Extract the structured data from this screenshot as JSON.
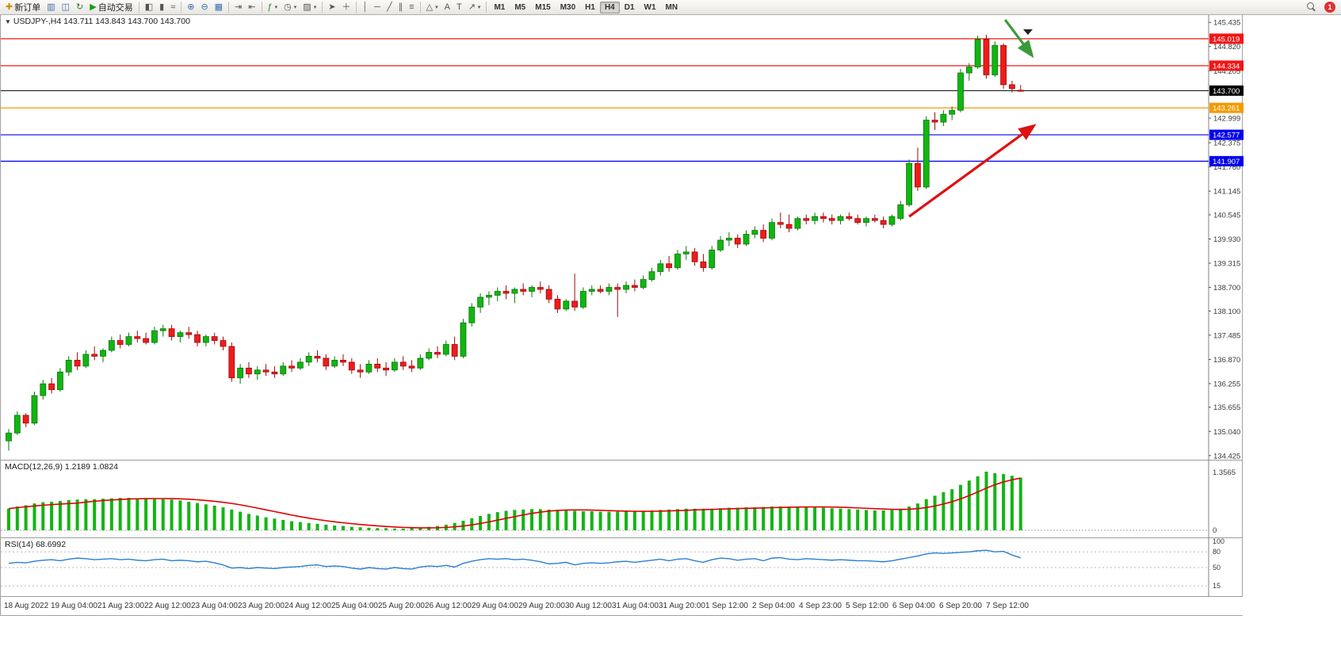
{
  "toolbar": {
    "groups": [
      {
        "items": [
          {
            "name": "new-order",
            "glyph": "✚",
            "glyph_color": "#c79100",
            "label": "新订单"
          },
          {
            "name": "chart-windows",
            "glyph": "▥",
            "glyph_color": "#3b6ea5"
          },
          {
            "name": "profiles",
            "glyph": "◫",
            "glyph_color": "#3b6ea5"
          },
          {
            "name": "refresh",
            "glyph": "↻",
            "glyph_color": "#2e7d32"
          },
          {
            "name": "auto-trading",
            "glyph": "▶",
            "glyph_color": "#1a9c1a",
            "label": "自动交易"
          }
        ]
      },
      {
        "items": [
          {
            "name": "bar-chart-mode",
            "glyph": "◧",
            "glyph_color": "#555"
          },
          {
            "name": "candlestick-mode",
            "glyph": "▮",
            "glyph_color": "#555"
          },
          {
            "name": "line-chart-mode",
            "glyph": "≈",
            "glyph_color": "#555"
          }
        ]
      },
      {
        "items": [
          {
            "name": "zoom-in",
            "glyph": "⊕",
            "glyph_color": "#3b6ea5"
          },
          {
            "name": "zoom-out",
            "glyph": "⊖",
            "glyph_color": "#3b6ea5"
          },
          {
            "name": "tile-windows",
            "glyph": "▦",
            "glyph_color": "#3b6ea5"
          }
        ]
      },
      {
        "items": [
          {
            "name": "auto-scroll",
            "glyph": "⇥",
            "glyph_color": "#555"
          },
          {
            "name": "chart-shift",
            "glyph": "⇤",
            "glyph_color": "#555"
          }
        ]
      },
      {
        "items": [
          {
            "name": "indicators",
            "glyph": "ƒ",
            "glyph_color": "#2e7d32",
            "caret": true
          },
          {
            "name": "periods",
            "glyph": "◷",
            "glyph_color": "#555",
            "caret": true
          },
          {
            "name": "templates",
            "glyph": "▨",
            "glyph_color": "#555",
            "caret": true
          }
        ]
      },
      {
        "items": [
          {
            "name": "cursor",
            "glyph": "➤",
            "glyph_color": "#555"
          },
          {
            "name": "crosshair",
            "glyph": "＋",
            "glyph_color": "#555"
          }
        ]
      },
      {
        "items": [
          {
            "name": "vertical-line",
            "glyph": "│",
            "glyph_color": "#555"
          },
          {
            "name": "horizontal-line",
            "glyph": "─",
            "glyph_color": "#555"
          },
          {
            "name": "trendline",
            "glyph": "╱",
            "glyph_color": "#555"
          },
          {
            "name": "equidistant-channel",
            "glyph": "∥",
            "glyph_color": "#555"
          },
          {
            "name": "fibonacci",
            "glyph": "≡",
            "glyph_color": "#555"
          }
        ]
      },
      {
        "items": [
          {
            "name": "shapes",
            "glyph": "△",
            "glyph_color": "#555",
            "caret": true
          },
          {
            "name": "text",
            "glyph": "A",
            "glyph_color": "#555"
          },
          {
            "name": "text-label",
            "glyph": "T",
            "glyph_color": "#555"
          },
          {
            "name": "arrows-tool",
            "glyph": "↗",
            "glyph_color": "#555",
            "caret": true
          }
        ]
      }
    ],
    "timeframes": [
      "M1",
      "M5",
      "M15",
      "M30",
      "H1",
      "H4",
      "D1",
      "W1",
      "MN"
    ],
    "active_timeframe": "H4",
    "collapse_arrow": "▼",
    "caret_glyph": "▾",
    "notification_count": "1"
  },
  "chart": {
    "title": "USDJPY-,H4  143.711 143.843 143.700 143.700",
    "symbol": "USDJPY-",
    "period": "H4"
  },
  "indicators": {
    "macd": {
      "label": "MACD(12,26,9) 1.2189 1.0824",
      "axis_max_label": "1.3565",
      "axis_zero_label": "0"
    },
    "rsi": {
      "label": "RSI(14) 68.6992",
      "axis_labels": [
        "100",
        "80",
        "50",
        "15"
      ]
    }
  },
  "chart_data": {
    "type": "candlestick",
    "symbol": "USDJPY-",
    "timeframe": "H4",
    "price_range": {
      "min": 134.3,
      "max": 145.62
    },
    "price_axis_ticks": [
      145.435,
      144.82,
      144.205,
      142.999,
      142.375,
      141.76,
      141.145,
      140.545,
      139.93,
      139.315,
      138.7,
      138.1,
      137.485,
      136.87,
      136.255,
      135.655,
      135.04,
      134.425
    ],
    "price_lines": [
      {
        "value": 145.019,
        "label": "145.019",
        "color": "#f21616",
        "kind": "resistance"
      },
      {
        "value": 144.334,
        "label": "144.334",
        "color": "#f21616",
        "kind": "resistance"
      },
      {
        "value": 143.7,
        "label": "143.700",
        "color": "#000000",
        "kind": "current-price"
      },
      {
        "value": 143.261,
        "label": "143.261",
        "color": "#f59a00",
        "kind": "level"
      },
      {
        "value": 142.577,
        "label": "142.577",
        "color": "#0000f0",
        "kind": "support"
      },
      {
        "value": 141.907,
        "label": "141.907",
        "color": "#0000f0",
        "kind": "support"
      }
    ],
    "time_labels": [
      "18 Aug 2022",
      "19 Aug 04:00",
      "21 Aug 23:00",
      "22 Aug 12:00",
      "23 Aug 04:00",
      "23 Aug 20:00",
      "24 Aug 12:00",
      "25 Aug 04:00",
      "25 Aug 20:00",
      "26 Aug 12:00",
      "29 Aug 04:00",
      "29 Aug 20:00",
      "30 Aug 12:00",
      "31 Aug 04:00",
      "31 Aug 20:00",
      "1 Sep 12:00",
      "2 Sep 04:00",
      "4 Sep 23:00",
      "5 Sep 12:00",
      "6 Sep 04:00",
      "6 Sep 20:00",
      "7 Sep 12:00"
    ],
    "candles": [
      [
        134.8,
        135.1,
        134.55,
        135.0
      ],
      [
        135.0,
        135.55,
        134.95,
        135.45
      ],
      [
        135.45,
        135.5,
        135.15,
        135.25
      ],
      [
        135.25,
        136.05,
        135.2,
        135.95
      ],
      [
        135.95,
        136.35,
        135.85,
        136.25
      ],
      [
        136.25,
        136.4,
        136.0,
        136.1
      ],
      [
        136.1,
        136.65,
        136.05,
        136.55
      ],
      [
        136.55,
        136.95,
        136.45,
        136.85
      ],
      [
        136.85,
        137.05,
        136.6,
        136.7
      ],
      [
        136.7,
        137.1,
        136.65,
        137.0
      ],
      [
        137.0,
        137.2,
        136.85,
        136.95
      ],
      [
        136.95,
        137.15,
        136.8,
        137.1
      ],
      [
        137.1,
        137.45,
        137.05,
        137.35
      ],
      [
        137.35,
        137.5,
        137.15,
        137.25
      ],
      [
        137.25,
        137.55,
        137.2,
        137.45
      ],
      [
        137.45,
        137.6,
        137.3,
        137.4
      ],
      [
        137.4,
        137.55,
        137.25,
        137.3
      ],
      [
        137.3,
        137.7,
        137.25,
        137.6
      ],
      [
        137.6,
        137.75,
        137.45,
        137.65
      ],
      [
        137.65,
        137.75,
        137.35,
        137.45
      ],
      [
        137.45,
        137.6,
        137.3,
        137.55
      ],
      [
        137.55,
        137.7,
        137.4,
        137.5
      ],
      [
        137.5,
        137.6,
        137.2,
        137.3
      ],
      [
        137.3,
        137.5,
        137.2,
        137.45
      ],
      [
        137.45,
        137.55,
        137.25,
        137.35
      ],
      [
        137.35,
        137.45,
        137.1,
        137.2
      ],
      [
        137.2,
        137.3,
        136.3,
        136.4
      ],
      [
        136.4,
        136.75,
        136.25,
        136.65
      ],
      [
        136.65,
        136.8,
        136.4,
        136.5
      ],
      [
        136.5,
        136.7,
        136.35,
        136.6
      ],
      [
        136.6,
        136.75,
        136.45,
        136.55
      ],
      [
        136.55,
        136.7,
        136.4,
        136.5
      ],
      [
        136.5,
        136.8,
        136.45,
        136.7
      ],
      [
        136.7,
        136.85,
        136.55,
        136.65
      ],
      [
        136.65,
        136.9,
        136.6,
        136.8
      ],
      [
        136.8,
        137.05,
        136.7,
        136.95
      ],
      [
        136.95,
        137.1,
        136.8,
        136.9
      ],
      [
        136.9,
        137.0,
        136.6,
        136.7
      ],
      [
        136.7,
        136.95,
        136.65,
        136.85
      ],
      [
        136.85,
        137.0,
        136.7,
        136.8
      ],
      [
        136.8,
        136.9,
        136.5,
        136.6
      ],
      [
        136.6,
        136.75,
        136.4,
        136.55
      ],
      [
        136.55,
        136.85,
        136.5,
        136.75
      ],
      [
        136.75,
        136.9,
        136.55,
        136.65
      ],
      [
        136.65,
        136.8,
        136.45,
        136.6
      ],
      [
        136.6,
        136.9,
        136.55,
        136.8
      ],
      [
        136.8,
        136.95,
        136.6,
        136.7
      ],
      [
        136.7,
        136.85,
        136.55,
        136.65
      ],
      [
        136.65,
        137.0,
        136.6,
        136.9
      ],
      [
        136.9,
        137.15,
        136.85,
        137.05
      ],
      [
        137.05,
        137.2,
        136.9,
        137.0
      ],
      [
        137.0,
        137.35,
        136.95,
        137.25
      ],
      [
        137.25,
        137.45,
        136.85,
        136.95
      ],
      [
        136.95,
        137.9,
        136.9,
        137.8
      ],
      [
        137.8,
        138.3,
        137.7,
        138.2
      ],
      [
        138.2,
        138.55,
        138.05,
        138.45
      ],
      [
        138.45,
        138.6,
        138.25,
        138.5
      ],
      [
        138.5,
        138.7,
        138.35,
        138.6
      ],
      [
        138.6,
        138.75,
        138.4,
        138.55
      ],
      [
        138.55,
        138.7,
        138.3,
        138.65
      ],
      [
        138.65,
        138.8,
        138.5,
        138.6
      ],
      [
        138.6,
        138.75,
        138.45,
        138.7
      ],
      [
        138.7,
        138.85,
        138.55,
        138.65
      ],
      [
        138.65,
        138.75,
        138.3,
        138.4
      ],
      [
        138.4,
        138.5,
        138.05,
        138.15
      ],
      [
        138.15,
        138.4,
        138.1,
        138.35
      ],
      [
        138.35,
        139.05,
        138.1,
        138.2
      ],
      [
        138.2,
        138.7,
        138.15,
        138.6
      ],
      [
        138.6,
        138.75,
        138.5,
        138.65
      ],
      [
        138.65,
        138.75,
        138.55,
        138.6
      ],
      [
        138.6,
        138.8,
        138.5,
        138.7
      ],
      [
        138.7,
        138.8,
        137.95,
        138.65
      ],
      [
        138.65,
        138.85,
        138.55,
        138.75
      ],
      [
        138.75,
        138.9,
        138.6,
        138.7
      ],
      [
        138.7,
        139.0,
        138.65,
        138.9
      ],
      [
        138.9,
        139.2,
        138.85,
        139.1
      ],
      [
        139.1,
        139.4,
        139.0,
        139.3
      ],
      [
        139.3,
        139.5,
        139.1,
        139.2
      ],
      [
        139.2,
        139.65,
        139.15,
        139.55
      ],
      [
        139.55,
        139.75,
        139.4,
        139.6
      ],
      [
        139.6,
        139.7,
        139.25,
        139.35
      ],
      [
        139.35,
        139.55,
        139.1,
        139.2
      ],
      [
        139.2,
        139.75,
        139.15,
        139.65
      ],
      [
        139.65,
        140.0,
        139.6,
        139.9
      ],
      [
        139.9,
        140.1,
        139.75,
        139.95
      ],
      [
        139.95,
        140.05,
        139.7,
        139.8
      ],
      [
        139.8,
        140.15,
        139.75,
        140.05
      ],
      [
        140.05,
        140.25,
        139.95,
        140.15
      ],
      [
        140.15,
        140.3,
        139.85,
        139.95
      ],
      [
        139.95,
        140.45,
        139.9,
        140.35
      ],
      [
        140.35,
        140.6,
        140.2,
        140.3
      ],
      [
        140.3,
        140.55,
        140.1,
        140.2
      ],
      [
        140.2,
        140.5,
        140.15,
        140.45
      ],
      [
        140.45,
        140.55,
        140.3,
        140.4
      ],
      [
        140.4,
        140.6,
        140.3,
        140.5
      ],
      [
        140.5,
        140.6,
        140.35,
        140.45
      ],
      [
        140.45,
        140.55,
        140.3,
        140.4
      ],
      [
        140.4,
        140.55,
        140.3,
        140.5
      ],
      [
        140.5,
        140.6,
        140.4,
        140.45
      ],
      [
        140.45,
        140.55,
        140.3,
        140.35
      ],
      [
        140.35,
        140.5,
        140.25,
        140.45
      ],
      [
        140.45,
        140.55,
        140.35,
        140.4
      ],
      [
        140.4,
        140.5,
        140.2,
        140.3
      ],
      [
        140.3,
        140.55,
        140.25,
        140.5
      ],
      [
        140.45,
        140.9,
        140.4,
        140.8
      ],
      [
        140.8,
        141.95,
        140.75,
        141.85
      ],
      [
        141.85,
        142.25,
        141.15,
        141.25
      ],
      [
        141.25,
        143.05,
        141.2,
        142.95
      ],
      [
        142.95,
        143.15,
        142.7,
        142.9
      ],
      [
        142.9,
        143.2,
        142.8,
        143.1
      ],
      [
        143.1,
        143.3,
        142.95,
        143.2
      ],
      [
        143.2,
        144.25,
        143.15,
        144.15
      ],
      [
        144.15,
        144.4,
        143.95,
        144.3
      ],
      [
        144.3,
        145.1,
        144.25,
        145.0
      ],
      [
        145.0,
        145.12,
        144.0,
        144.1
      ],
      [
        144.1,
        144.95,
        144.05,
        144.85
      ],
      [
        144.85,
        144.9,
        143.75,
        143.85
      ],
      [
        143.85,
        143.95,
        143.65,
        143.75
      ],
      [
        143.711,
        143.843,
        143.7,
        143.7
      ]
    ],
    "macd_hist": [
      0.5,
      0.55,
      0.58,
      0.62,
      0.65,
      0.66,
      0.68,
      0.7,
      0.71,
      0.72,
      0.72,
      0.73,
      0.74,
      0.75,
      0.75,
      0.74,
      0.73,
      0.72,
      0.72,
      0.71,
      0.69,
      0.66,
      0.63,
      0.6,
      0.57,
      0.53,
      0.48,
      0.43,
      0.38,
      0.34,
      0.3,
      0.27,
      0.24,
      0.21,
      0.19,
      0.17,
      0.15,
      0.13,
      0.11,
      0.1,
      0.08,
      0.07,
      0.06,
      0.05,
      0.05,
      0.04,
      0.04,
      0.05,
      0.06,
      0.08,
      0.1,
      0.13,
      0.17,
      0.22,
      0.28,
      0.33,
      0.38,
      0.42,
      0.45,
      0.47,
      0.48,
      0.49,
      0.49,
      0.48,
      0.47,
      0.46,
      0.45,
      0.44,
      0.44,
      0.43,
      0.43,
      0.43,
      0.44,
      0.44,
      0.45,
      0.46,
      0.47,
      0.48,
      0.49,
      0.5,
      0.5,
      0.5,
      0.5,
      0.51,
      0.52,
      0.52,
      0.53,
      0.53,
      0.54,
      0.55,
      0.55,
      0.55,
      0.54,
      0.54,
      0.53,
      0.52,
      0.51,
      0.5,
      0.49,
      0.48,
      0.47,
      0.46,
      0.46,
      0.47,
      0.5,
      0.55,
      0.62,
      0.72,
      0.8,
      0.88,
      0.95,
      1.05,
      1.15,
      1.25,
      1.3565,
      1.32,
      1.3,
      1.26,
      1.2189
    ],
    "macd_axis_max": 1.3565,
    "rsi": [
      58,
      60,
      59,
      62,
      64,
      65,
      63,
      66,
      68,
      67,
      65,
      66,
      67,
      65,
      66,
      64,
      63,
      65,
      66,
      63,
      64,
      63,
      61,
      62,
      59,
      55,
      49,
      50,
      48,
      50,
      49,
      48,
      50,
      51,
      52,
      54,
      55,
      52,
      53,
      52,
      49,
      47,
      50,
      48,
      47,
      50,
      48,
      47,
      51,
      53,
      52,
      54,
      51,
      58,
      62,
      65,
      67,
      66,
      67,
      65,
      66,
      64,
      61,
      57,
      58,
      60,
      55,
      58,
      59,
      58,
      59,
      61,
      62,
      60,
      62,
      64,
      66,
      63,
      66,
      67,
      63,
      60,
      65,
      68,
      67,
      64,
      66,
      67,
      63,
      68,
      69,
      66,
      65,
      67,
      66,
      65,
      64,
      65,
      64,
      63,
      63,
      62,
      61,
      63,
      66,
      69,
      72,
      76,
      78,
      77,
      78,
      79,
      80,
      82,
      83,
      80,
      81,
      74,
      68.7
    ],
    "rsi_axis_ticks": [
      100,
      80,
      50,
      15
    ],
    "rsi_levels": [
      80,
      50,
      15
    ],
    "annotations": [
      {
        "type": "arrow",
        "name": "bullish-trend-arrow",
        "color": "#e01010",
        "from_index": 105,
        "from_price": 140.5,
        "to_index": 119.5,
        "to_price": 142.8
      },
      {
        "type": "arrow",
        "name": "bearish-reversal-arrow",
        "color": "#3a9a3a",
        "from_index": 116.2,
        "from_price": 145.5,
        "to_index": 119.3,
        "to_price": 144.6
      }
    ],
    "colors": {
      "bull_fill": "#12b512",
      "bull_stroke": "#067806",
      "bear_fill": "#ee1c1c",
      "bear_stroke": "#9c0b0b",
      "macd_hist": "#12b512",
      "macd_signal": "#e00000",
      "rsi_line": "#2a7fd4",
      "axis_text": "#3a3a3a",
      "grid": "#999999"
    }
  }
}
